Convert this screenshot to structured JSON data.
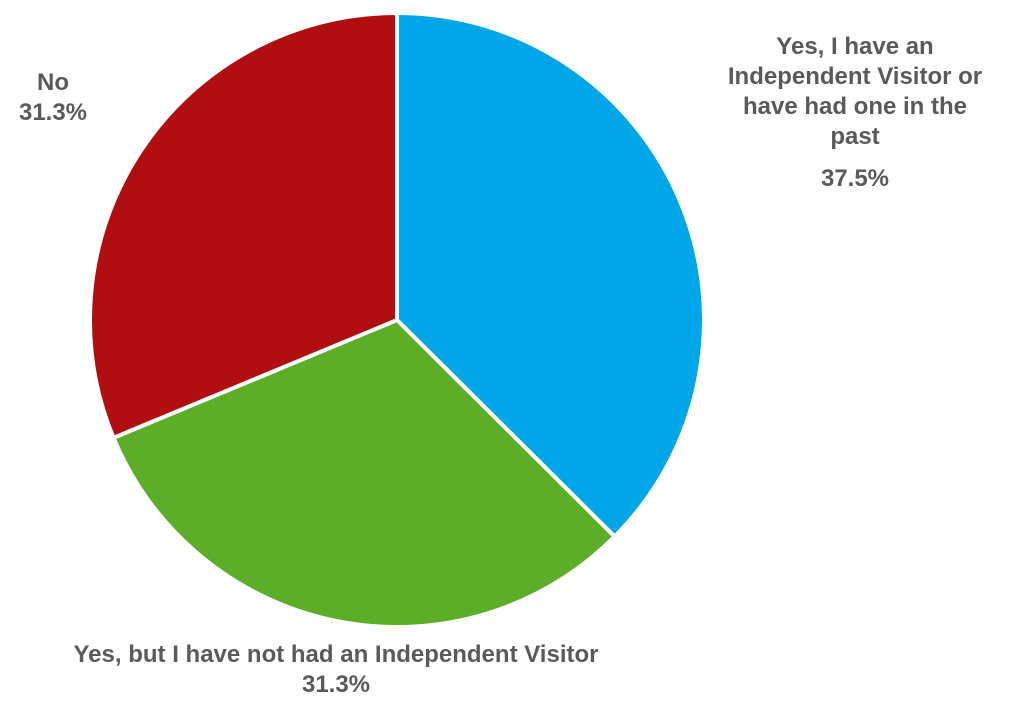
{
  "chart_data": {
    "type": "pie",
    "title": "",
    "slices": [
      {
        "label_lines": [
          "Yes, I have an",
          "Independent Visitor or",
          "have had one in the",
          "past"
        ],
        "label": "Yes, I have an Independent Visitor or have had one in the past",
        "value": 37.5,
        "value_label": "37.5%",
        "color": "#00a6e8"
      },
      {
        "label_lines": [
          "Yes, but I have not had an Independent Visitor"
        ],
        "label": "Yes, but I have not had an Independent Visitor",
        "value": 31.3,
        "value_label": "31.3%",
        "color": "#5cad27"
      },
      {
        "label_lines": [
          "No"
        ],
        "label": "No",
        "value": 31.3,
        "value_label": "31.3%",
        "color": "#b00e10"
      }
    ],
    "start_angle_deg": 0,
    "direction": "clockwise",
    "label_color": "#5a5a5a",
    "border_color": "#ffffff"
  }
}
